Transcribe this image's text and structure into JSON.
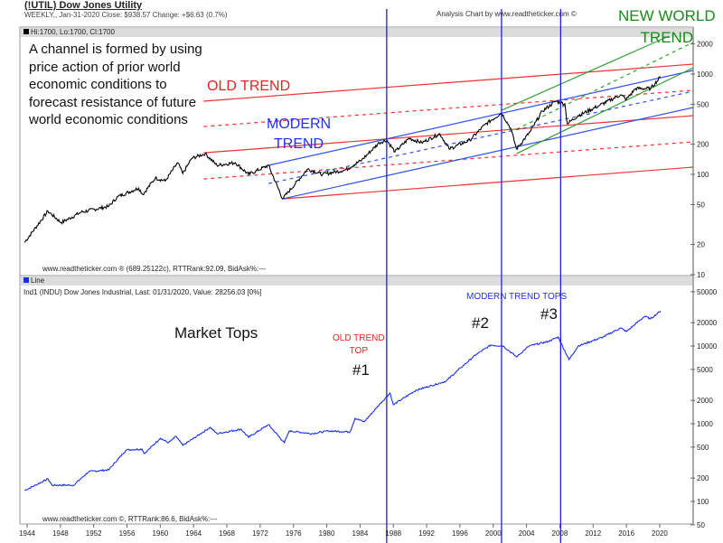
{
  "header": {
    "title": "(!UTIL) Dow Jones Utility",
    "subtitle": "WEEKLY,, Jan-31-2020  Close: $938.57  Change: +$6.63  (0.7%)",
    "credit": "Analysis Chart by www.readtheticker.com ©"
  },
  "colors": {
    "price": "#000000",
    "index": "#1a2ef0",
    "old_trend": "#f03030",
    "modern_trend": "#3050f0",
    "new_trend": "#30a030",
    "marker": "#2020e0",
    "band": "#dcdcdc"
  },
  "chart_data": [
    {
      "type": "line",
      "title": "(!UTIL) Dow Jones Utility",
      "legend": "Hi:1700, Lo:1700, Cl:1700",
      "footer": "www.readtheticker.com ® (689.25122c), RTTRank:92.09, BidAsk%:---",
      "yscale": "log",
      "ylim": [
        10,
        2000
      ],
      "yticks": [
        "2000",
        "1000",
        "500",
        "200",
        "100",
        "50",
        "20",
        "10"
      ],
      "series": [
        {
          "name": "!UTIL",
          "x": [
            1943.7,
            1946.5,
            1948.1,
            1950.5,
            1953.8,
            1954.9,
            1957.4,
            1957.9,
            1959.4,
            1960.6,
            1962.1,
            1962.7,
            1963.8,
            1965.4,
            1966.8,
            1969.0,
            1970.6,
            1973.0,
            1974.7,
            1977.7,
            1979.5,
            1982.3,
            1984.2,
            1986.3,
            1987.2,
            1988.2,
            1989.9,
            1991.4,
            1993.6,
            1994.7,
            1997.2,
            1999.0,
            2001.0,
            2002.1,
            2002.8,
            2004.5,
            2005.9,
            2007.5,
            2008.6,
            2008.9,
            2010.2,
            2012.7,
            2015.3,
            2016.0,
            2017.1,
            2018.9,
            2020.1
          ],
          "values": [
            21,
            43,
            33,
            42,
            48,
            60,
            73,
            63,
            92,
            86,
            131,
            102,
            145,
            161,
            123,
            131,
            100,
            123,
            57,
            113,
            100,
            111,
            139,
            207,
            220,
            168,
            229,
            207,
            254,
            179,
            220,
            313,
            410,
            288,
            179,
            271,
            427,
            537,
            505,
            320,
            385,
            484,
            621,
            560,
            718,
            718,
            938.57
          ]
        }
      ],
      "trendlines": [
        {
          "group": "old",
          "style": "solid",
          "from": [
            1965.2,
            537
          ],
          "to": [
            2024.0,
            1256
          ]
        },
        {
          "group": "old",
          "style": "dashed",
          "from": [
            1965.2,
            300
          ],
          "to": [
            2024.0,
            689
          ]
        },
        {
          "group": "old",
          "style": "solid",
          "from": [
            1965.2,
            164
          ],
          "to": [
            2024.0,
            385
          ]
        },
        {
          "group": "old",
          "style": "dashed",
          "from": [
            1965.2,
            90
          ],
          "to": [
            2024.0,
            211
          ]
        },
        {
          "group": "old",
          "style": "solid",
          "from": [
            1974.7,
            57
          ],
          "to": [
            2024.0,
            118
          ]
        },
        {
          "group": "modern",
          "style": "solid",
          "from": [
            1973.0,
            123
          ],
          "to": [
            2024.0,
            1087
          ]
        },
        {
          "group": "modern",
          "style": "dashed",
          "from": [
            1973.0,
            81
          ],
          "to": [
            2024.0,
            673
          ]
        },
        {
          "group": "modern",
          "style": "solid",
          "from": [
            1974.7,
            57
          ],
          "to": [
            2024.0,
            464
          ]
        },
        {
          "group": "new",
          "style": "solid",
          "from": [
            2001.0,
            436
          ],
          "to": [
            2021.1,
            2390
          ]
        },
        {
          "group": "new",
          "style": "dashed",
          "from": [
            2002.8,
            282
          ],
          "to": [
            2024.0,
            2070
          ]
        },
        {
          "group": "new",
          "style": "solid",
          "from": [
            2002.8,
            161
          ],
          "to": [
            2024.0,
            1153
          ]
        }
      ]
    },
    {
      "type": "line",
      "title": "Ind1 (INDU) Dow Jones Industrial",
      "legend": "Line",
      "info": "Ind1 (INDU) Dow Jones Industrial, Last: 01/31/2020,  Value: 28256.03 [0%]",
      "footer": "www.readtheticker.com ©, RTTRank:86.6, BidAsk%:---",
      "yscale": "log",
      "ylim": [
        50,
        50000
      ],
      "yticks": [
        "50000",
        "20000",
        "10000",
        "5000",
        "2000",
        "1000",
        "500",
        "200",
        "100",
        "50"
      ],
      "xticks": [
        "1944",
        "1948",
        "1952",
        "1956",
        "1960",
        "1964",
        "1968",
        "1972",
        "1976",
        "1980",
        "1984",
        "1988",
        "1992",
        "1996",
        "2000",
        "2004",
        "2008",
        "2012",
        "2016",
        "2020"
      ],
      "series": [
        {
          "name": "INDU",
          "x": [
            1943.7,
            1946.5,
            1947.0,
            1949.6,
            1951.4,
            1953.8,
            1955.9,
            1957.8,
            1958.1,
            1960.0,
            1961.0,
            1961.9,
            1962.7,
            1966.0,
            1966.8,
            1969.7,
            1970.6,
            1973.0,
            1974.9,
            1975.5,
            1978.2,
            1980.2,
            1982.8,
            1983.4,
            1984.5,
            1986.3,
            1987.6,
            1988.0,
            1990.7,
            1994.3,
            1996.1,
            1998.0,
            1999.7,
            2001.2,
            2002.8,
            2004.3,
            2006.6,
            2007.8,
            2009.1,
            2010.2,
            2013.2,
            2015.3,
            2016.0,
            2018.2,
            2018.9,
            2020.1
          ],
          "values": [
            138,
            195,
            162,
            162,
            242,
            255,
            460,
            472,
            413,
            651,
            570,
            687,
            526,
            898,
            745,
            851,
            670,
            973,
            570,
            808,
            745,
            808,
            786,
            1175,
            1059,
            1754,
            2484,
            1754,
            2693,
            3520,
            5260,
            7860,
            10270,
            10000,
            7250,
            10000,
            11430,
            13070,
            6690,
            10000,
            13070,
            17100,
            15350,
            24200,
            22400,
            28256.03
          ]
        }
      ]
    }
  ],
  "markers": {
    "years": [
      1987.2,
      2001.0,
      2008.1
    ]
  },
  "annotations": {
    "channel_note": [
      "A channel is formed by using",
      "price action of prior world",
      "economic conditions to",
      "forecast resistance of future",
      "world economic conditions"
    ],
    "old_trend": "OLD TREND",
    "modern_trend": [
      "MODERN",
      "TREND"
    ],
    "new_world_trend": [
      "NEW WORLD",
      "TREND"
    ],
    "market_tops": "Market Tops",
    "old_trend_top": [
      "OLD TREND",
      "TOP"
    ],
    "modern_trend_tops": "MODERN TREND TOPS",
    "top1": "#1",
    "top2": "#2",
    "top3": "#3"
  }
}
